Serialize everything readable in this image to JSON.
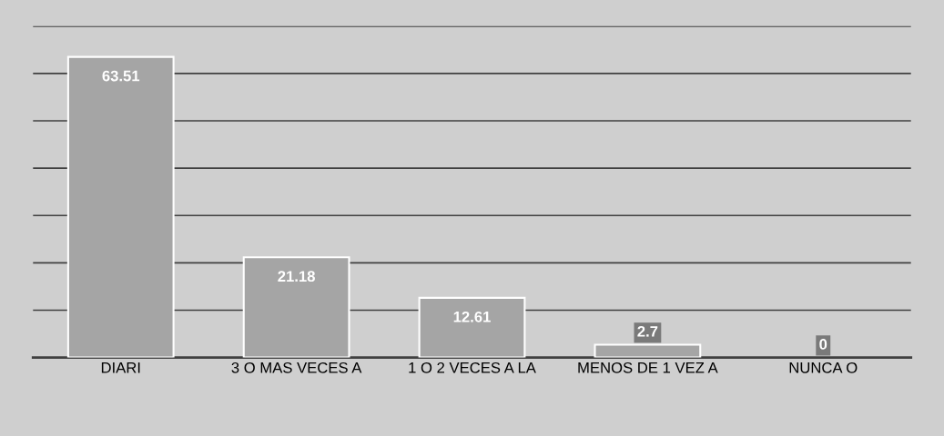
{
  "chart_data": {
    "type": "bar",
    "categories": [
      "DIARI",
      "3 O MAS VECES A",
      "1 O 2 VECES A LA",
      "MENOS DE 1 VEZ A",
      "NUNCA O"
    ],
    "values": [
      63.51,
      21.18,
      12.61,
      2.7,
      0
    ],
    "color": "#a5a5a5",
    "ylim": [
      0,
      70
    ],
    "yticks": [
      {
        "value": 10,
        "label": null
      },
      {
        "value": 20,
        "label": null
      },
      {
        "value": 30,
        "label": null
      },
      {
        "value": 40,
        "label": null
      },
      {
        "value": 50,
        "label": null
      },
      {
        "value": 60,
        "label": null
      },
      {
        "value": 70,
        "label": null
      }
    ],
    "tick_labels": "x",
    "grid": "y",
    "data_labels": true
  }
}
